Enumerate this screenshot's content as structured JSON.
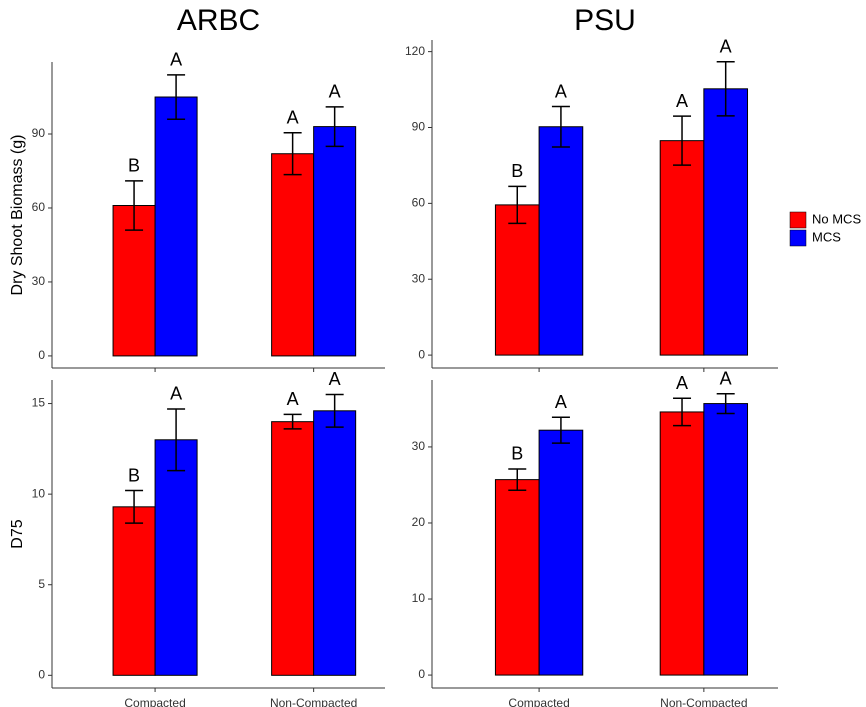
{
  "chart_data": [
    {
      "type": "bar",
      "title": "ARBC",
      "y_label": "Dry Shoot Biomass (g)",
      "categories": [
        null,
        null
      ],
      "ylim": [
        -4.9,
        119.2
      ],
      "yticks": [
        0,
        30,
        60,
        90
      ],
      "series": [
        {
          "name": "No MCS",
          "color": "#ff0000",
          "values": [
            61,
            82
          ],
          "errors": [
            10,
            8.5
          ],
          "labels": [
            "B",
            "A"
          ]
        },
        {
          "name": "MCS",
          "color": "#0000ff",
          "values": [
            105,
            93
          ],
          "errors": [
            9,
            8
          ],
          "labels": [
            "A",
            "A"
          ]
        }
      ]
    },
    {
      "type": "bar",
      "title": "PSU",
      "categories": [
        null,
        null
      ],
      "ylim": [
        -5.1,
        124.6
      ],
      "yticks": [
        0,
        30,
        60,
        90,
        120
      ],
      "series": [
        {
          "color": "#ff0000",
          "values": [
            59.4,
            84.8
          ],
          "errors": [
            7.3,
            9.7
          ],
          "labels": [
            "B",
            "A"
          ]
        },
        {
          "color": "#0000ff",
          "values": [
            90.3,
            105.3
          ],
          "errors": [
            8,
            10.7
          ],
          "labels": [
            "A",
            "A"
          ]
        }
      ]
    },
    {
      "type": "bar",
      "y_label": "D75",
      "categories": [
        "Compacted",
        "Non-Compacted"
      ],
      "ylim": [
        -0.7,
        16.3
      ],
      "yticks": [
        0,
        5,
        10,
        15
      ],
      "series": [
        {
          "color": "#ff0000",
          "values": [
            9.3,
            14.0
          ],
          "errors": [
            0.9,
            0.4
          ],
          "labels": [
            "B",
            "A"
          ]
        },
        {
          "color": "#0000ff",
          "values": [
            13.0,
            14.6
          ],
          "errors": [
            1.7,
            0.9
          ],
          "labels": [
            "A",
            "A"
          ]
        }
      ]
    },
    {
      "type": "bar",
      "categories": [
        "Compacted",
        "Non-Compacted"
      ],
      "ylim": [
        -1.7,
        38.8
      ],
      "yticks": [
        0,
        10,
        20,
        30
      ],
      "series": [
        {
          "color": "#ff0000",
          "values": [
            25.7,
            34.6
          ],
          "errors": [
            1.4,
            1.8
          ],
          "labels": [
            "B",
            "A"
          ]
        },
        {
          "color": "#0000ff",
          "values": [
            32.2,
            35.7
          ],
          "errors": [
            1.7,
            1.3
          ],
          "labels": [
            "A",
            "A"
          ]
        }
      ]
    }
  ]
}
